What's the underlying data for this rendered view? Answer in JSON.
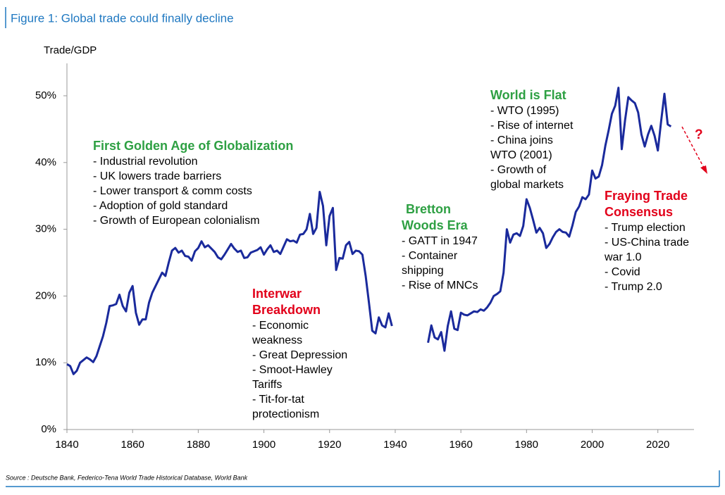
{
  "chart_data": {
    "type": "line",
    "title": "Figure 1: Global trade could finally decline",
    "y_axis_label": "Trade/GDP",
    "source": "Source : Deutsche Bank, Federico-Tena World Trade Historical Database, World Bank",
    "color": "#1a2a9c",
    "x": [
      1840,
      1841,
      1842,
      1843,
      1844,
      1845,
      1846,
      1847,
      1848,
      1849,
      1850,
      1851,
      1852,
      1853,
      1854,
      1855,
      1856,
      1857,
      1858,
      1859,
      1860,
      1861,
      1862,
      1863,
      1864,
      1865,
      1866,
      1867,
      1868,
      1869,
      1870,
      1871,
      1872,
      1873,
      1874,
      1875,
      1876,
      1877,
      1878,
      1879,
      1880,
      1881,
      1882,
      1883,
      1884,
      1885,
      1886,
      1887,
      1888,
      1889,
      1890,
      1891,
      1892,
      1893,
      1894,
      1895,
      1896,
      1897,
      1898,
      1899,
      1900,
      1901,
      1902,
      1903,
      1904,
      1905,
      1906,
      1907,
      1908,
      1909,
      1910,
      1911,
      1912,
      1913,
      1914,
      1915,
      1916,
      1917,
      1918,
      1919,
      1920,
      1921,
      1922,
      1923,
      1924,
      1925,
      1926,
      1927,
      1928,
      1929,
      1930,
      1931,
      1932,
      1933,
      1934,
      1935,
      1936,
      1937,
      1938,
      1939,
      1945,
      1950,
      1951,
      1952,
      1953,
      1954,
      1955,
      1956,
      1957,
      1958,
      1959,
      1960,
      1961,
      1962,
      1963,
      1964,
      1965,
      1966,
      1967,
      1968,
      1969,
      1970,
      1971,
      1972,
      1973,
      1974,
      1975,
      1976,
      1977,
      1978,
      1979,
      1980,
      1981,
      1982,
      1983,
      1984,
      1985,
      1986,
      1987,
      1988,
      1989,
      1990,
      1991,
      1992,
      1993,
      1994,
      1995,
      1996,
      1997,
      1998,
      1999,
      2000,
      2001,
      2002,
      2003,
      2004,
      2005,
      2006,
      2007,
      2008,
      2009,
      2010,
      2011,
      2012,
      2013,
      2014,
      2015,
      2016,
      2017,
      2018,
      2019,
      2020,
      2021,
      2022,
      2023,
      2024
    ],
    "values": [
      9.8,
      9.5,
      8.3,
      8.8,
      10,
      10.4,
      10.8,
      10.5,
      10.1,
      11,
      12.5,
      14,
      16,
      18.5,
      18.6,
      18.8,
      20.2,
      18.5,
      17.7,
      20.5,
      21.5,
      17.5,
      15.7,
      16.5,
      16.5,
      19,
      20.5,
      21.5,
      22.5,
      23.5,
      23,
      25,
      26.8,
      27.2,
      26.5,
      26.8,
      26,
      25.9,
      25.3,
      26.7,
      27.2,
      28.2,
      27.3,
      27.6,
      27.1,
      26.6,
      25.8,
      25.5,
      26.2,
      27,
      27.8,
      27.1,
      26.6,
      26.8,
      25.7,
      25.8,
      26.5,
      26.7,
      26.9,
      27.3,
      26.2,
      27,
      27.6,
      26.6,
      26.8,
      26.3,
      27.4,
      28.5,
      28.2,
      28.3,
      28,
      29.2,
      29.3,
      30,
      32.3,
      29.3,
      30.2,
      35.6,
      33.5,
      27.6,
      32,
      33.2,
      23.9,
      25.7,
      25.6,
      27.6,
      28.1,
      26.3,
      26.8,
      26.7,
      26.2,
      23,
      19,
      14.8,
      14.4,
      16.8,
      15.6,
      15.3,
      17.4,
      15.5,
      null,
      13,
      15.6,
      13.8,
      13.5,
      14.6,
      11.8,
      15.5,
      17.7,
      15.1,
      14.9,
      17.5,
      17.2,
      17.1,
      17.4,
      17.7,
      17.6,
      18,
      17.8,
      18.3,
      19,
      20,
      20.3,
      20.7,
      23.5,
      30,
      28,
      29.2,
      29.4,
      29,
      30.5,
      34.5,
      33.2,
      31.4,
      29.5,
      30.2,
      29.4,
      27.2,
      27.8,
      28.8,
      29.6,
      30,
      29.6,
      29.5,
      28.9,
      30.6,
      32.6,
      33.4,
      34.8,
      34.5,
      35.2,
      38.8,
      37.6,
      37.9,
      39.6,
      42.5,
      44.8,
      47.3,
      48.5,
      51.2,
      42,
      46.3,
      49.8,
      49.3,
      48.9,
      47.5,
      44.2,
      42.4,
      44.2,
      45.5,
      44,
      41.8,
      46.2,
      50.3,
      45.7,
      45.4
    ],
    "xlim": [
      1840,
      2030
    ],
    "xticks": [
      1840,
      1860,
      1880,
      1900,
      1920,
      1940,
      1960,
      1980,
      2000,
      2020
    ],
    "ylim": [
      0,
      55
    ],
    "yticks": [
      {
        "value": 0,
        "label": "0%"
      },
      {
        "value": 10,
        "label": "10%"
      },
      {
        "value": 20,
        "label": "20%"
      },
      {
        "value": 30,
        "label": "30%"
      },
      {
        "value": 40,
        "label": "40%"
      },
      {
        "value": 50,
        "label": "50%"
      }
    ],
    "annotations": [
      {
        "title": [
          "First Golden Age of Globalization"
        ],
        "color": "#2ea043",
        "lines": [
          "- Industrial revolution",
          "- UK lowers trade barriers",
          "- Lower transport & comm costs",
          "- Adoption of gold standard",
          "- Growth of European colonialism"
        ]
      },
      {
        "title": [
          "Interwar",
          "Breakdown"
        ],
        "color": "#e2001a",
        "lines": [
          "- Economic",
          "weakness",
          "- Great Depression",
          "- Smoot-Hawley",
          "Tariffs",
          "- Tit-for-tat",
          "protectionism"
        ]
      },
      {
        "title": [
          "Bretton",
          "Woods Era"
        ],
        "color": "#2ea043",
        "lines": [
          "- GATT in 1947",
          "- Container",
          "shipping",
          "- Rise of MNCs"
        ]
      },
      {
        "title": [
          "World is Flat"
        ],
        "color": "#2ea043",
        "lines": [
          "-  WTO (1995)",
          "- Rise of internet",
          "- China joins",
          "WTO (2001)",
          "- Growth of",
          "global markets"
        ]
      },
      {
        "title": [
          "Fraying Trade",
          "Consensus"
        ],
        "color": "#e2001a",
        "lines": [
          "- Trump election",
          "- US-China trade",
          "war 1.0",
          "- Covid",
          "- Trump 2.0"
        ]
      }
    ],
    "question_mark": "?"
  }
}
